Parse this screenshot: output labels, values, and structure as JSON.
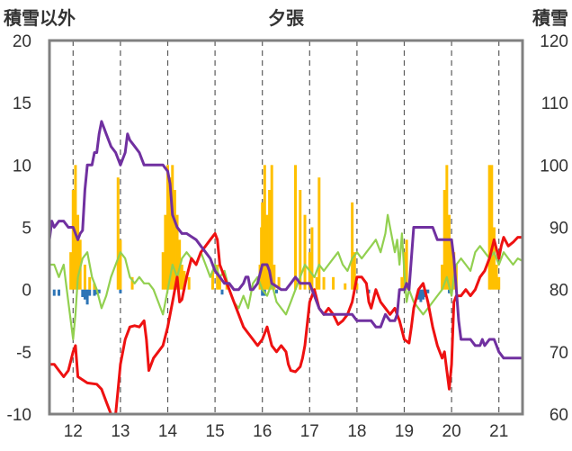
{
  "chart_data": {
    "type": "line",
    "title": "夕張",
    "ylabel_left": "積雪以外",
    "ylabel_right": "積雪",
    "ylim_left": [
      -10,
      20
    ],
    "ylim_right": [
      60,
      120
    ],
    "y_ticks_left": [
      "20",
      "15",
      "10",
      "5",
      "0",
      "-5",
      "-10"
    ],
    "y_ticks_right": [
      "120",
      "110",
      "100",
      "90",
      "80",
      "70",
      "60"
    ],
    "x_tick_labels": [
      "12",
      "13",
      "14",
      "15",
      "16",
      "17",
      "18",
      "19",
      "20",
      "21"
    ],
    "x_tick_values": [
      12,
      13,
      14,
      15,
      16,
      17,
      18,
      19,
      20,
      21
    ],
    "xlim": [
      11.5,
      21.5
    ],
    "grid": "dashed vertical",
    "colors": {
      "red_line": "#ee1111",
      "green_line": "#92d050",
      "purple_line": "#7030a0",
      "precip_bars": "#ffc000",
      "negative_bars": "#2e75b6"
    },
    "red_series": [
      [
        11.5,
        -6
      ],
      [
        11.6,
        -6
      ],
      [
        11.7,
        -6.5
      ],
      [
        11.8,
        -7
      ],
      [
        11.9,
        -6.5
      ],
      [
        12.0,
        -5
      ],
      [
        12.05,
        -4.5
      ],
      [
        12.1,
        -7
      ],
      [
        12.3,
        -7.5
      ],
      [
        12.5,
        -7.6
      ],
      [
        12.6,
        -8
      ],
      [
        12.7,
        -9
      ],
      [
        12.8,
        -10
      ],
      [
        12.9,
        -10
      ],
      [
        12.95,
        -8
      ],
      [
        13.0,
        -6
      ],
      [
        13.1,
        -4
      ],
      [
        13.2,
        -3
      ],
      [
        13.3,
        -2.9
      ],
      [
        13.4,
        -3
      ],
      [
        13.5,
        -2.5
      ],
      [
        13.55,
        -4
      ],
      [
        13.6,
        -6.5
      ],
      [
        13.7,
        -5.5
      ],
      [
        13.8,
        -5
      ],
      [
        13.9,
        -4.5
      ],
      [
        14.0,
        -3
      ],
      [
        14.1,
        -1
      ],
      [
        14.2,
        1
      ],
      [
        14.25,
        -1
      ],
      [
        14.3,
        -0.8
      ],
      [
        14.4,
        1
      ],
      [
        14.5,
        2.5
      ],
      [
        14.6,
        2
      ],
      [
        14.7,
        3
      ],
      [
        14.8,
        3.5
      ],
      [
        14.9,
        4
      ],
      [
        15.0,
        4.5
      ],
      [
        15.05,
        4
      ],
      [
        15.1,
        2
      ],
      [
        15.2,
        1
      ],
      [
        15.3,
        0
      ],
      [
        15.4,
        -1
      ],
      [
        15.5,
        -2
      ],
      [
        15.6,
        -3
      ],
      [
        15.7,
        -3.5
      ],
      [
        15.8,
        -4
      ],
      [
        15.9,
        -4.5
      ],
      [
        16.0,
        -4
      ],
      [
        16.1,
        -3
      ],
      [
        16.2,
        -4.5
      ],
      [
        16.3,
        -5
      ],
      [
        16.4,
        -4.5
      ],
      [
        16.5,
        -5
      ],
      [
        16.55,
        -6
      ],
      [
        16.6,
        -6.5
      ],
      [
        16.7,
        -6.6
      ],
      [
        16.8,
        -6.2
      ],
      [
        16.85,
        -5.5
      ],
      [
        16.9,
        -4.5
      ],
      [
        17.0,
        -1
      ],
      [
        17.1,
        0
      ],
      [
        17.2,
        -1.5
      ],
      [
        17.3,
        -2
      ],
      [
        17.4,
        -1.5
      ],
      [
        17.5,
        -2
      ],
      [
        17.6,
        -2.8
      ],
      [
        17.7,
        -2.5
      ],
      [
        17.8,
        -2
      ],
      [
        17.9,
        -1
      ],
      [
        18.0,
        1
      ],
      [
        18.1,
        1
      ],
      [
        18.2,
        0.5
      ],
      [
        18.25,
        -1
      ],
      [
        18.3,
        -1.5
      ],
      [
        18.4,
        0
      ],
      [
        18.5,
        -1
      ],
      [
        18.6,
        -1.5
      ],
      [
        18.7,
        -2
      ],
      [
        18.8,
        -1.5
      ],
      [
        18.9,
        -2.5
      ],
      [
        19.0,
        -4
      ],
      [
        19.1,
        -4.3
      ],
      [
        19.15,
        -3
      ],
      [
        19.2,
        -1.5
      ],
      [
        19.3,
        0
      ],
      [
        19.4,
        0.5
      ],
      [
        19.5,
        -1
      ],
      [
        19.6,
        -3
      ],
      [
        19.7,
        -4.5
      ],
      [
        19.8,
        -5.5
      ],
      [
        19.85,
        -5
      ],
      [
        19.9,
        -6.5
      ],
      [
        19.95,
        -8
      ],
      [
        20.0,
        -6
      ],
      [
        20.05,
        -1
      ],
      [
        20.1,
        -0.5
      ],
      [
        20.2,
        -0.5
      ],
      [
        20.3,
        0
      ],
      [
        20.4,
        -0.5
      ],
      [
        20.5,
        0
      ],
      [
        20.6,
        1
      ],
      [
        20.7,
        1.5
      ],
      [
        20.8,
        2.5
      ],
      [
        20.9,
        4
      ],
      [
        21.0,
        2.5
      ],
      [
        21.05,
        3.5
      ],
      [
        21.1,
        4.2
      ],
      [
        21.2,
        3.5
      ],
      [
        21.3,
        3.8
      ],
      [
        21.4,
        4.2
      ],
      [
        21.5,
        4.2
      ]
    ],
    "green_series": [
      [
        11.5,
        2
      ],
      [
        11.6,
        2
      ],
      [
        11.7,
        1
      ],
      [
        11.8,
        2
      ],
      [
        11.9,
        -1
      ],
      [
        12.0,
        -4
      ],
      [
        12.05,
        -2
      ],
      [
        12.1,
        1
      ],
      [
        12.2,
        2.5
      ],
      [
        12.3,
        3
      ],
      [
        12.35,
        2
      ],
      [
        12.4,
        1
      ],
      [
        12.5,
        0
      ],
      [
        12.6,
        -1.5
      ],
      [
        12.7,
        -0.5
      ],
      [
        12.8,
        1
      ],
      [
        12.9,
        2
      ],
      [
        13.0,
        3
      ],
      [
        13.1,
        2.5
      ],
      [
        13.2,
        1
      ],
      [
        13.3,
        0.5
      ],
      [
        13.4,
        1
      ],
      [
        13.5,
        0.5
      ],
      [
        13.6,
        0.5
      ],
      [
        13.7,
        0
      ],
      [
        13.8,
        -1
      ],
      [
        13.9,
        -2
      ],
      [
        14.0,
        0
      ],
      [
        14.1,
        2
      ],
      [
        14.2,
        1
      ],
      [
        14.3,
        2.5
      ],
      [
        14.4,
        3
      ],
      [
        14.5,
        2.5
      ],
      [
        14.6,
        2
      ],
      [
        14.7,
        3
      ],
      [
        14.8,
        2
      ],
      [
        14.9,
        1
      ],
      [
        15.0,
        2
      ],
      [
        15.1,
        1
      ],
      [
        15.2,
        1.5
      ],
      [
        15.3,
        0
      ],
      [
        15.4,
        -1
      ],
      [
        15.5,
        -1.5
      ],
      [
        15.6,
        -0.5
      ],
      [
        15.7,
        -1.5
      ],
      [
        15.8,
        0.5
      ],
      [
        15.9,
        1
      ],
      [
        16.0,
        0
      ],
      [
        16.1,
        -0.5
      ],
      [
        16.2,
        0.5
      ],
      [
        16.3,
        -1
      ],
      [
        16.4,
        -1.5
      ],
      [
        16.5,
        -2
      ],
      [
        16.6,
        -1
      ],
      [
        16.7,
        0
      ],
      [
        16.8,
        1
      ],
      [
        16.9,
        2
      ],
      [
        17.0,
        1.5
      ],
      [
        17.1,
        1
      ],
      [
        17.2,
        2
      ],
      [
        17.3,
        1.5
      ],
      [
        17.4,
        2
      ],
      [
        17.5,
        2.5
      ],
      [
        17.6,
        3
      ],
      [
        17.7,
        2
      ],
      [
        17.8,
        1.5
      ],
      [
        17.9,
        2.5
      ],
      [
        18.0,
        3
      ],
      [
        18.1,
        2.5
      ],
      [
        18.2,
        3
      ],
      [
        18.3,
        3.5
      ],
      [
        18.4,
        4
      ],
      [
        18.5,
        3
      ],
      [
        18.6,
        4.5
      ],
      [
        18.65,
        6
      ],
      [
        18.7,
        5
      ],
      [
        18.8,
        3
      ],
      [
        18.85,
        4
      ],
      [
        18.9,
        2
      ],
      [
        18.95,
        4.5
      ],
      [
        19.0,
        1.5
      ],
      [
        19.05,
        -1
      ],
      [
        19.1,
        0
      ],
      [
        19.2,
        -1
      ],
      [
        19.3,
        -1.5
      ],
      [
        19.4,
        -2
      ],
      [
        19.5,
        -1.5
      ],
      [
        19.6,
        -1
      ],
      [
        19.7,
        -0.5
      ],
      [
        19.8,
        0
      ],
      [
        19.9,
        1
      ],
      [
        20.0,
        -0.5
      ],
      [
        20.05,
        1
      ],
      [
        20.1,
        2
      ],
      [
        20.2,
        2.5
      ],
      [
        20.3,
        2
      ],
      [
        20.4,
        1.5
      ],
      [
        20.5,
        3
      ],
      [
        20.6,
        3.5
      ],
      [
        20.7,
        3
      ],
      [
        20.8,
        2.5
      ],
      [
        20.9,
        3
      ],
      [
        21.0,
        2
      ],
      [
        21.1,
        3
      ],
      [
        21.2,
        2.5
      ],
      [
        21.3,
        2
      ],
      [
        21.4,
        2.5
      ],
      [
        21.5,
        2.3
      ]
    ],
    "purple_series": [
      [
        11.5,
        88
      ],
      [
        11.55,
        91
      ],
      [
        11.6,
        90
      ],
      [
        11.7,
        91
      ],
      [
        11.8,
        91
      ],
      [
        11.9,
        90
      ],
      [
        12.0,
        90
      ],
      [
        12.05,
        89
      ],
      [
        12.1,
        88
      ],
      [
        12.15,
        89
      ],
      [
        12.2,
        89.5
      ],
      [
        12.25,
        96
      ],
      [
        12.3,
        100
      ],
      [
        12.4,
        100
      ],
      [
        12.45,
        102
      ],
      [
        12.5,
        102
      ],
      [
        12.55,
        105
      ],
      [
        12.6,
        107
      ],
      [
        12.65,
        106
      ],
      [
        12.7,
        105
      ],
      [
        12.8,
        103
      ],
      [
        12.9,
        102
      ],
      [
        13.0,
        100
      ],
      [
        13.1,
        102
      ],
      [
        13.15,
        105
      ],
      [
        13.2,
        104
      ],
      [
        13.3,
        103
      ],
      [
        13.4,
        102
      ],
      [
        13.5,
        100
      ],
      [
        13.6,
        100
      ],
      [
        13.7,
        100
      ],
      [
        13.8,
        100
      ],
      [
        13.9,
        100
      ],
      [
        14.0,
        99
      ],
      [
        14.05,
        97
      ],
      [
        14.1,
        92
      ],
      [
        14.2,
        90
      ],
      [
        14.3,
        89
      ],
      [
        14.4,
        89
      ],
      [
        14.5,
        88.5
      ],
      [
        14.6,
        88
      ],
      [
        14.7,
        87
      ],
      [
        14.8,
        86
      ],
      [
        14.9,
        85
      ],
      [
        15.0,
        83
      ],
      [
        15.1,
        82
      ],
      [
        15.2,
        81
      ],
      [
        15.3,
        81
      ],
      [
        15.4,
        80
      ],
      [
        15.5,
        80
      ],
      [
        15.6,
        81
      ],
      [
        15.65,
        82
      ],
      [
        15.7,
        82
      ],
      [
        15.75,
        80
      ],
      [
        15.8,
        80
      ],
      [
        15.9,
        81
      ],
      [
        16.0,
        84
      ],
      [
        16.1,
        84
      ],
      [
        16.15,
        83
      ],
      [
        16.2,
        81
      ],
      [
        16.3,
        80.5
      ],
      [
        16.4,
        80
      ],
      [
        16.5,
        80
      ],
      [
        16.6,
        81
      ],
      [
        16.7,
        82
      ],
      [
        16.8,
        81
      ],
      [
        16.9,
        81
      ],
      [
        17.0,
        81
      ],
      [
        17.05,
        80
      ],
      [
        17.1,
        79
      ],
      [
        17.2,
        77
      ],
      [
        17.3,
        76
      ],
      [
        17.4,
        76
      ],
      [
        17.5,
        76
      ],
      [
        17.6,
        76
      ],
      [
        17.7,
        76
      ],
      [
        17.8,
        76
      ],
      [
        17.9,
        76
      ],
      [
        18.0,
        75
      ],
      [
        18.1,
        75
      ],
      [
        18.2,
        75
      ],
      [
        18.3,
        75
      ],
      [
        18.4,
        74
      ],
      [
        18.5,
        74
      ],
      [
        18.55,
        75
      ],
      [
        18.6,
        76
      ],
      [
        18.7,
        75
      ],
      [
        18.8,
        75
      ],
      [
        18.85,
        76
      ],
      [
        18.9,
        80
      ],
      [
        19.0,
        80
      ],
      [
        19.05,
        81
      ],
      [
        19.1,
        80
      ],
      [
        19.15,
        85
      ],
      [
        19.2,
        90
      ],
      [
        19.3,
        90
      ],
      [
        19.4,
        90
      ],
      [
        19.5,
        90
      ],
      [
        19.6,
        90
      ],
      [
        19.65,
        89
      ],
      [
        19.7,
        88
      ],
      [
        19.8,
        88
      ],
      [
        19.9,
        88
      ],
      [
        20.0,
        88
      ],
      [
        20.05,
        85
      ],
      [
        20.1,
        80
      ],
      [
        20.15,
        75
      ],
      [
        20.2,
        72
      ],
      [
        20.3,
        72
      ],
      [
        20.4,
        72
      ],
      [
        20.5,
        71
      ],
      [
        20.6,
        71
      ],
      [
        20.65,
        72
      ],
      [
        20.7,
        71
      ],
      [
        20.8,
        72
      ],
      [
        20.9,
        72
      ],
      [
        20.95,
        71
      ],
      [
        21.0,
        70
      ],
      [
        21.1,
        69
      ],
      [
        21.2,
        69
      ],
      [
        21.3,
        69
      ],
      [
        21.4,
        69
      ],
      [
        21.5,
        69
      ]
    ],
    "precip_bars": [
      [
        11.95,
        3
      ],
      [
        12.0,
        8
      ],
      [
        12.05,
        10
      ],
      [
        12.1,
        6
      ],
      [
        12.15,
        4
      ],
      [
        12.25,
        2
      ],
      [
        12.35,
        1
      ],
      [
        12.45,
        0.5
      ],
      [
        12.95,
        9
      ],
      [
        13.0,
        4
      ],
      [
        13.25,
        1
      ],
      [
        13.9,
        3
      ],
      [
        13.95,
        6
      ],
      [
        14.0,
        10
      ],
      [
        14.05,
        9
      ],
      [
        14.1,
        10
      ],
      [
        14.15,
        8
      ],
      [
        14.2,
        6
      ],
      [
        14.25,
        4
      ],
      [
        14.3,
        2
      ],
      [
        14.35,
        1.5
      ],
      [
        14.45,
        1
      ],
      [
        14.95,
        1.5
      ],
      [
        15.05,
        2
      ],
      [
        15.1,
        1
      ],
      [
        15.25,
        0.5
      ],
      [
        15.95,
        2
      ],
      [
        15.98,
        5
      ],
      [
        16.0,
        7
      ],
      [
        16.05,
        10
      ],
      [
        16.1,
        6
      ],
      [
        16.15,
        8
      ],
      [
        16.2,
        10
      ],
      [
        16.25,
        2
      ],
      [
        16.35,
        1
      ],
      [
        16.7,
        10
      ],
      [
        16.8,
        8
      ],
      [
        16.9,
        6
      ],
      [
        17.0,
        3
      ],
      [
        17.05,
        5
      ],
      [
        17.15,
        1
      ],
      [
        17.2,
        9
      ],
      [
        17.3,
        1
      ],
      [
        17.5,
        1
      ],
      [
        17.75,
        0.5
      ],
      [
        17.9,
        7
      ],
      [
        17.95,
        3
      ],
      [
        18.0,
        0.5
      ],
      [
        18.95,
        1
      ],
      [
        19.0,
        3
      ],
      [
        19.05,
        4
      ],
      [
        19.1,
        0.5
      ],
      [
        19.8,
        2
      ],
      [
        19.85,
        8
      ],
      [
        19.9,
        10
      ],
      [
        19.95,
        6
      ],
      [
        20.0,
        4
      ],
      [
        20.05,
        3
      ],
      [
        20.1,
        2
      ],
      [
        20.8,
        10
      ],
      [
        20.85,
        10
      ],
      [
        20.9,
        5
      ],
      [
        20.95,
        2
      ],
      [
        21.0,
        1
      ]
    ],
    "negative_bars": [
      [
        11.6,
        -0.5
      ],
      [
        11.7,
        -0.5
      ],
      [
        12.2,
        -0.6
      ],
      [
        12.25,
        -0.8
      ],
      [
        12.3,
        -1.2
      ],
      [
        12.35,
        -0.5
      ],
      [
        12.45,
        -0.5
      ],
      [
        12.5,
        -0.4
      ],
      [
        12.55,
        -0.3
      ],
      [
        13.0,
        -0.3
      ],
      [
        15.15,
        -0.4
      ],
      [
        16.0,
        -0.5
      ],
      [
        16.05,
        -0.5
      ],
      [
        16.3,
        -0.3
      ],
      [
        18.25,
        -0.3
      ],
      [
        19.3,
        -0.8
      ],
      [
        19.35,
        -1
      ],
      [
        19.4,
        -0.8
      ],
      [
        19.45,
        -0.6
      ],
      [
        19.5,
        -0.3
      ],
      [
        19.95,
        -0.3
      ]
    ]
  }
}
